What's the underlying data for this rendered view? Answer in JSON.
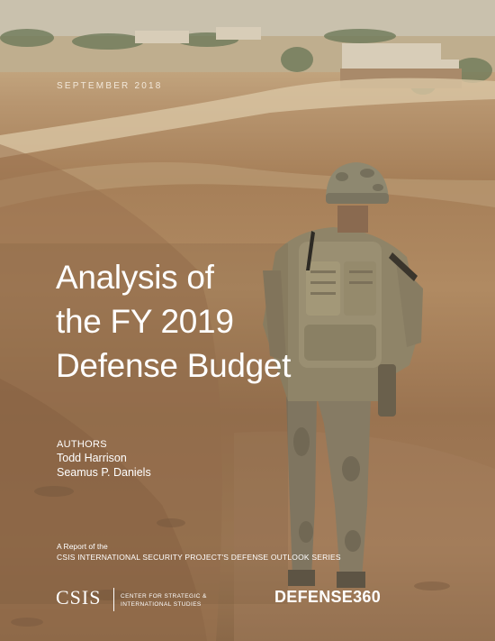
{
  "cover": {
    "date": "SEPTEMBER 2018",
    "title_lines": [
      "Analysis of",
      "the FY 2019",
      "Defense Budget"
    ],
    "authors_heading": "AUTHORS",
    "authors": [
      "Todd Harrison",
      "Seamus P. Daniels"
    ],
    "report_line1": "A Report of the",
    "report_line2": "CSIS INTERNATIONAL SECURITY PROJECT'S DEFENSE OUTLOOK SERIES",
    "csis_logo": "CSIS",
    "csis_sub_lines": [
      "CENTER FOR STRATEGIC &",
      "INTERNATIONAL STUDIES"
    ],
    "defense360_logo": "DEFENSE360"
  },
  "palette": {
    "text": "#ffffff",
    "dirt": "#a67f58",
    "camouflage": "#8c8068",
    "sky_haze": "#cdbfa6"
  }
}
